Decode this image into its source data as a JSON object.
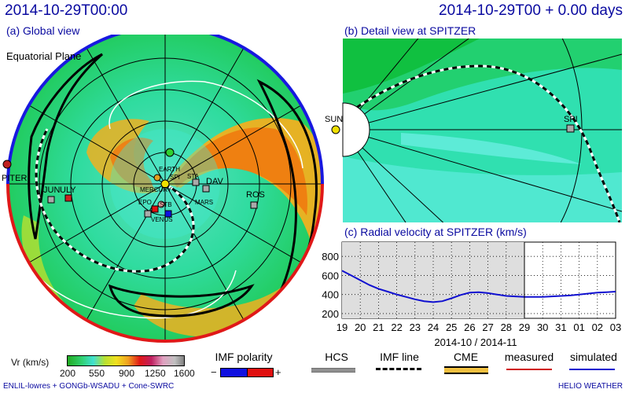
{
  "header": {
    "timestamp": "2014-10-29T00:00",
    "run_time": "2014-10-29T00 + 0.00 days"
  },
  "panel_a": {
    "label": "(a) Global view",
    "plane_label": "Equatorial Plane",
    "objects": [
      {
        "name": "EARTH"
      },
      {
        "name": "MERCURY"
      },
      {
        "name": "MARS"
      },
      {
        "name": "VENUS"
      },
      {
        "name": "STA"
      },
      {
        "name": "STB"
      },
      {
        "name": "EPO"
      },
      {
        "name": "SPI"
      },
      {
        "name": "DAV"
      },
      {
        "name": "ROS"
      },
      {
        "name": "JUN"
      },
      {
        "name": "ULY"
      },
      {
        "name": "PITER"
      }
    ]
  },
  "panel_b": {
    "label": "(b) Detail view at SPITZER",
    "sun_label": "SUN",
    "target_label": "SPI"
  },
  "panel_c": {
    "label": "(c) Radial velocity at SPITZER (km/s)"
  },
  "chart_data": [
    {
      "type": "line",
      "title": "(c) Radial velocity at SPITZER (km/s)",
      "xlabel": "2014-10 / 2014-11",
      "x_tick_labels": [
        "19",
        "20",
        "21",
        "22",
        "23",
        "24",
        "25",
        "26",
        "27",
        "28",
        "29",
        "30",
        "31",
        "01",
        "02",
        "03"
      ],
      "y_tick_labels": [
        "200",
        "400",
        "600",
        "800"
      ],
      "ylim": [
        150,
        950
      ],
      "grid": true,
      "current_day_index": 10,
      "series": [
        {
          "name": "simulated",
          "color": "#1010d0",
          "x": [
            0,
            0.5,
            1,
            1.5,
            2,
            2.5,
            3,
            3.5,
            4,
            4.5,
            5,
            5.5,
            6,
            6.5,
            7,
            7.5,
            8,
            8.5,
            9,
            9.5,
            10,
            10.5,
            11,
            11.5,
            12,
            12.5,
            13,
            13.5,
            14,
            14.5,
            15
          ],
          "values": [
            650,
            600,
            550,
            500,
            460,
            430,
            400,
            375,
            350,
            330,
            320,
            330,
            360,
            395,
            420,
            425,
            415,
            400,
            385,
            380,
            375,
            375,
            375,
            380,
            385,
            390,
            400,
            410,
            420,
            425,
            430
          ]
        }
      ]
    },
    {
      "type": "heatmap",
      "title": "Vr (km/s)",
      "colorbar_ticks": [
        "200",
        "550",
        "900",
        "1250",
        "1600"
      ],
      "colorbar_label": "Vr (km/s)",
      "range": [
        200,
        1600
      ]
    }
  ],
  "legend": {
    "imf_polarity_label": "IMF polarity",
    "minus": "−",
    "plus": "+",
    "hcs": "HCS",
    "imf_line": "IMF line",
    "cme": "CME",
    "measured": "measured",
    "simulated": "simulated",
    "colors": {
      "measured": "#d01010",
      "simulated": "#1010d0",
      "cme": "#f0c040",
      "hcs": "#909090",
      "polarity_neg": "#1010e0",
      "polarity_pos": "#e01010"
    }
  },
  "footer": {
    "credits": "ENLIL-lowres + GONGb-WSADU + Cone-SWRC",
    "brand": "HELIO WEATHER"
  }
}
